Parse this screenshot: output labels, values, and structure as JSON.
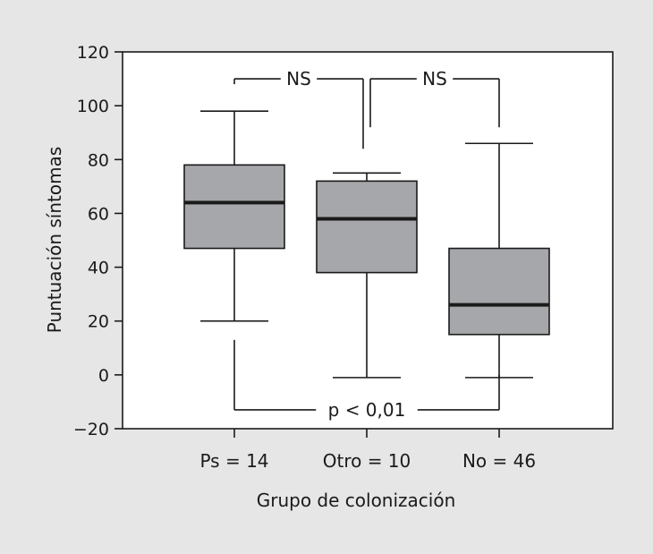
{
  "chart_data": {
    "type": "boxplot",
    "title": "",
    "xlabel": "Grupo de colonización",
    "ylabel": "Puntuación síntomas",
    "ylim": [
      -20,
      120
    ],
    "yticks": [
      -20,
      0,
      20,
      40,
      60,
      80,
      100,
      120
    ],
    "ytick_labels": [
      "−20",
      "0",
      "20",
      "40",
      "60",
      "80",
      "100",
      "120"
    ],
    "grid": false,
    "categories": [
      "Ps = 14",
      "Otro = 10",
      "No = 46"
    ],
    "boxes": [
      {
        "whisker_low": 20,
        "q1": 47,
        "median": 64,
        "q3": 78,
        "whisker_high": 98
      },
      {
        "whisker_low": -1,
        "q1": 38,
        "median": 58,
        "q3": 72,
        "whisker_high": 75
      },
      {
        "whisker_low": -1,
        "q1": 15,
        "median": 26,
        "q3": 47,
        "whisker_high": 86
      }
    ],
    "colors": {
      "box_fill": "#a6a7aa",
      "line": "#1a1a1a",
      "plot_bg": "#ffffff",
      "page_bg": "#e6e6e7"
    },
    "annotations": [
      {
        "label": "NS",
        "from": 0,
        "to": 1,
        "y": 110,
        "drop_from": 108,
        "drop_to": 84
      },
      {
        "label": "NS",
        "from": 1,
        "to": 2,
        "y": 110,
        "drop_from": 84,
        "drop_to": 92
      },
      {
        "label": "p < 0,01",
        "from": 0,
        "to": 2,
        "y": -13,
        "drop_from": 13,
        "drop_to": 0
      }
    ]
  }
}
